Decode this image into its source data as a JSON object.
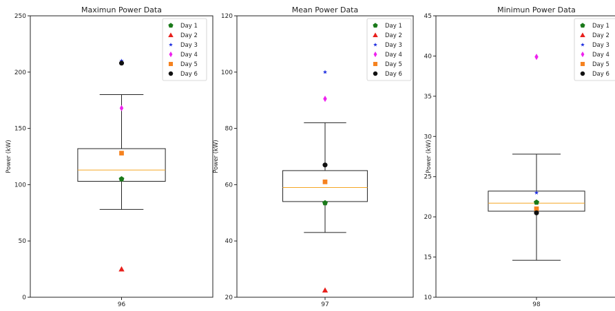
{
  "chart_data": [
    {
      "type": "box",
      "title": "Maximun Power Data",
      "xlabel": "",
      "ylabel": "Power (kW)",
      "ylim": [
        0,
        250
      ],
      "yticks": [
        0,
        50,
        100,
        150,
        200,
        250
      ],
      "categories": [
        "96"
      ],
      "box": {
        "whisker_low": 78,
        "q1": 103,
        "median": 113,
        "q3": 132,
        "whisker_high": 180
      },
      "points": [
        {
          "series": "Day 1",
          "value": 105
        },
        {
          "series": "Day 2",
          "value": 25
        },
        {
          "series": "Day 3",
          "value": 210
        },
        {
          "series": "Day 4",
          "value": 168
        },
        {
          "series": "Day 5",
          "value": 128
        },
        {
          "series": "Day 6",
          "value": 208
        }
      ],
      "legend_position": "top-right"
    },
    {
      "type": "box",
      "title": "Mean Power Data",
      "xlabel": "",
      "ylabel": "Power (kW)",
      "ylim": [
        20,
        120
      ],
      "yticks": [
        20,
        40,
        60,
        80,
        100,
        120
      ],
      "categories": [
        "97"
      ],
      "box": {
        "whisker_low": 43,
        "q1": 54,
        "median": 59,
        "q3": 65,
        "whisker_high": 82
      },
      "points": [
        {
          "series": "Day 1",
          "value": 53.5
        },
        {
          "series": "Day 2",
          "value": 22.5
        },
        {
          "series": "Day 3",
          "value": 100
        },
        {
          "series": "Day 4",
          "value": 90.5
        },
        {
          "series": "Day 5",
          "value": 61
        },
        {
          "series": "Day 6",
          "value": 67
        }
      ],
      "legend_position": "top-right"
    },
    {
      "type": "box",
      "title": "Minimun Power Data",
      "xlabel": "",
      "ylabel": "Power (kW)",
      "ylim": [
        10,
        45
      ],
      "yticks": [
        10,
        15,
        20,
        25,
        30,
        35,
        40,
        45
      ],
      "categories": [
        "98"
      ],
      "box": {
        "whisker_low": 14.6,
        "q1": 20.7,
        "median": 21.7,
        "q3": 23.2,
        "whisker_high": 27.8
      },
      "points": [
        {
          "series": "Day 1",
          "value": 21.8
        },
        {
          "series": "Day 3",
          "value": 23.0
        },
        {
          "series": "Day 4",
          "value": 39.9
        },
        {
          "series": "Day 5",
          "value": 21.0
        },
        {
          "series": "Day 6",
          "value": 20.5
        }
      ],
      "legend_position": "top-right"
    }
  ],
  "legend": [
    {
      "name": "Day 1",
      "marker": "pentagon",
      "color": "#1a7a1a"
    },
    {
      "name": "Day 2",
      "marker": "triangle",
      "color": "#e8201c"
    },
    {
      "name": "Day 3",
      "marker": "star",
      "color": "#1f2fe0"
    },
    {
      "name": "Day 4",
      "marker": "diamond",
      "color": "#ee22ee"
    },
    {
      "name": "Day 5",
      "marker": "square",
      "color": "#f5821f"
    },
    {
      "name": "Day 6",
      "marker": "circle",
      "color": "#111111"
    }
  ],
  "colors": {
    "median": "#f5a623",
    "box": "#222222"
  }
}
